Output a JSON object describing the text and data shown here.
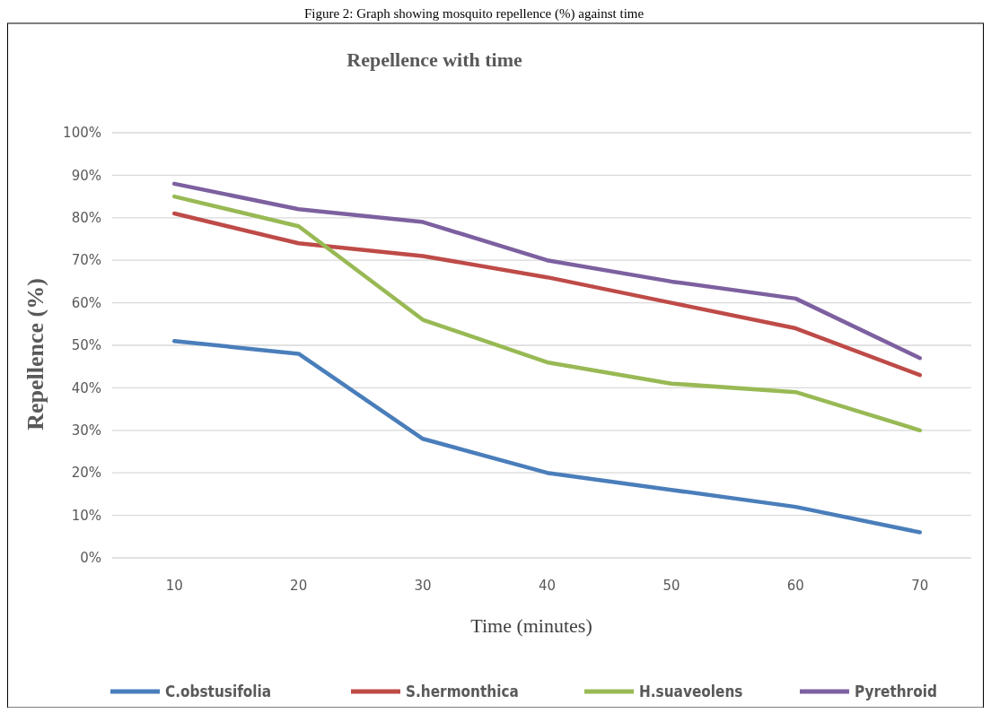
{
  "chart_data": {
    "type": "line",
    "title": "Repellence with time",
    "xlabel": "Time  (minutes)",
    "ylabel": "Repellence (%)",
    "annotations": [
      "Figure 2: Graph showing mosquito repellence (%) against time"
    ],
    "categories": [
      "10",
      "20",
      "30",
      "40",
      "50",
      "60",
      "70"
    ],
    "series": [
      {
        "name": "C.obstusifolia",
        "color": "#4a7ebb",
        "values": [
          51,
          48,
          28,
          20,
          16,
          12,
          6
        ]
      },
      {
        "name": "S.hermonthica",
        "color": "#be4b48",
        "values": [
          81,
          74,
          71,
          66,
          60,
          54,
          43
        ]
      },
      {
        "name": "H.suaveolens",
        "color": "#98b954",
        "values": [
          85,
          78,
          56,
          46,
          41,
          39,
          30
        ]
      },
      {
        "name": "Pyrethroid",
        "color": "#7d60a0",
        "values": [
          88,
          82,
          79,
          70,
          65,
          61,
          47
        ]
      }
    ],
    "ylim": [
      0,
      100
    ],
    "yticks": [
      {
        "value": 0,
        "label": "0%"
      },
      {
        "value": 10,
        "label": "10%"
      },
      {
        "value": 20,
        "label": "20%"
      },
      {
        "value": 30,
        "label": "30%"
      },
      {
        "value": 40,
        "label": "40%"
      },
      {
        "value": 50,
        "label": "50%"
      },
      {
        "value": 60,
        "label": "60%"
      },
      {
        "value": 70,
        "label": "70%"
      },
      {
        "value": 80,
        "label": "80%"
      },
      {
        "value": 90,
        "label": "90%"
      },
      {
        "value": 100,
        "label": "100%"
      }
    ],
    "grid": "y",
    "legend": "bottom",
    "marker": "none",
    "line_style": "solid"
  }
}
